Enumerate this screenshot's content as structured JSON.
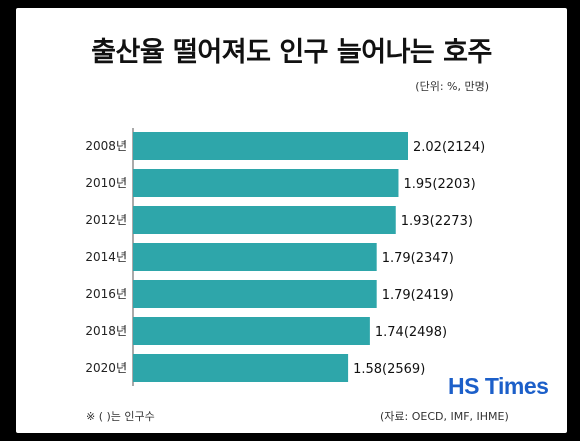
{
  "title": "출산율 떨어져도 인구 늘어나는 호주",
  "unit_note": "(단위: %, 만명)",
  "footnote": "※ ( )는 인구수",
  "source": "(자료: OECD, IMF, IHME)",
  "logo": "HS Times",
  "colors": {
    "bar": "#2ea6aa",
    "logo": "#1c5fc9",
    "frame": "#000000"
  },
  "chart_data": {
    "type": "bar",
    "orientation": "horizontal",
    "categories": [
      "2008년",
      "2010년",
      "2012년",
      "2014년",
      "2016년",
      "2018년",
      "2020년"
    ],
    "series": [
      {
        "values": [
          2.02,
          1.95,
          1.93,
          1.79,
          1.79,
          1.74,
          1.58
        ]
      }
    ],
    "population": [
      2124,
      2203,
      2273,
      2347,
      2419,
      2498,
      2569
    ],
    "data_labels": [
      "2.02(2124)",
      "1.95(2203)",
      "1.93(2273)",
      "1.79(2347)",
      "1.79(2419)",
      "1.74(2498)",
      "1.58(2569)"
    ],
    "xlim": [
      0,
      2.02
    ],
    "grid": false,
    "legend": "none"
  }
}
